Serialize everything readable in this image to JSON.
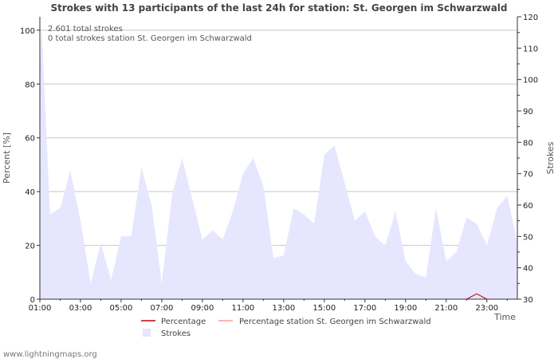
{
  "chart_data": {
    "type": "area",
    "title": "Strokes with 13 participants of the last 24h for station: St. Georgen im Schwarzwald",
    "info_lines": [
      "2.601 total strokes",
      "0 total strokes station St. Georgen im Schwarzwald"
    ],
    "y_left": {
      "label": "Percent   [%]",
      "min": 0,
      "max": 105,
      "ticks": [
        0,
        20,
        40,
        60,
        80,
        100
      ]
    },
    "y_right": {
      "label": "Strokes",
      "min": 30,
      "max": 120,
      "ticks": [
        30,
        40,
        50,
        60,
        70,
        80,
        90,
        100,
        110,
        120
      ]
    },
    "x": {
      "label": "Time",
      "min": 0,
      "max": 23.5,
      "tick_labels": [
        "01:00",
        "03:00",
        "05:00",
        "07:00",
        "09:00",
        "11:00",
        "13:00",
        "15:00",
        "17:00",
        "19:00",
        "21:00",
        "23:00"
      ],
      "tick_positions": [
        0,
        2,
        4,
        6,
        8,
        10,
        12,
        14,
        16,
        18,
        20,
        22
      ]
    },
    "series": [
      {
        "name": "Strokes",
        "axis": "right",
        "color": "#e6e6ff",
        "x": [
          0,
          0.08,
          0.5,
          1,
          1.5,
          2,
          2.5,
          3,
          3.5,
          4,
          4.5,
          5,
          5.5,
          6,
          6.5,
          7,
          7.5,
          8,
          8.5,
          9,
          9.5,
          10,
          10.5,
          11,
          11.5,
          12,
          12.5,
          13,
          13.5,
          14,
          14.5,
          15,
          15.5,
          16,
          16.5,
          17,
          17.5,
          18,
          18.5,
          19,
          19.5,
          20,
          20.5,
          21,
          21.5,
          22,
          22.5,
          23,
          23.5
        ],
        "values": [
          101,
          118,
          57,
          59,
          71,
          55,
          35,
          48,
          36,
          50,
          50,
          72,
          60,
          35,
          63,
          75,
          62,
          49,
          52,
          49,
          58,
          70,
          75,
          66,
          43,
          44,
          59,
          57,
          54,
          76,
          79,
          67,
          55,
          58,
          50,
          47,
          58,
          42,
          38,
          37,
          59,
          42,
          45,
          56,
          54,
          47,
          59,
          63,
          48
        ]
      },
      {
        "name": "Percentage",
        "axis": "left",
        "color": "#cc0000",
        "x": [
          21.0,
          21.5,
          22.0
        ],
        "values": [
          0,
          2,
          0
        ]
      },
      {
        "name": "Percentage station St. Georgen im Schwarzwald",
        "axis": "left",
        "color": "#ff9999",
        "x": [],
        "values": []
      }
    ],
    "legend": [
      "Percentage",
      "Percentage station St. Georgen im Schwarzwald",
      "Strokes"
    ],
    "footer": "www.lightningmaps.org"
  }
}
